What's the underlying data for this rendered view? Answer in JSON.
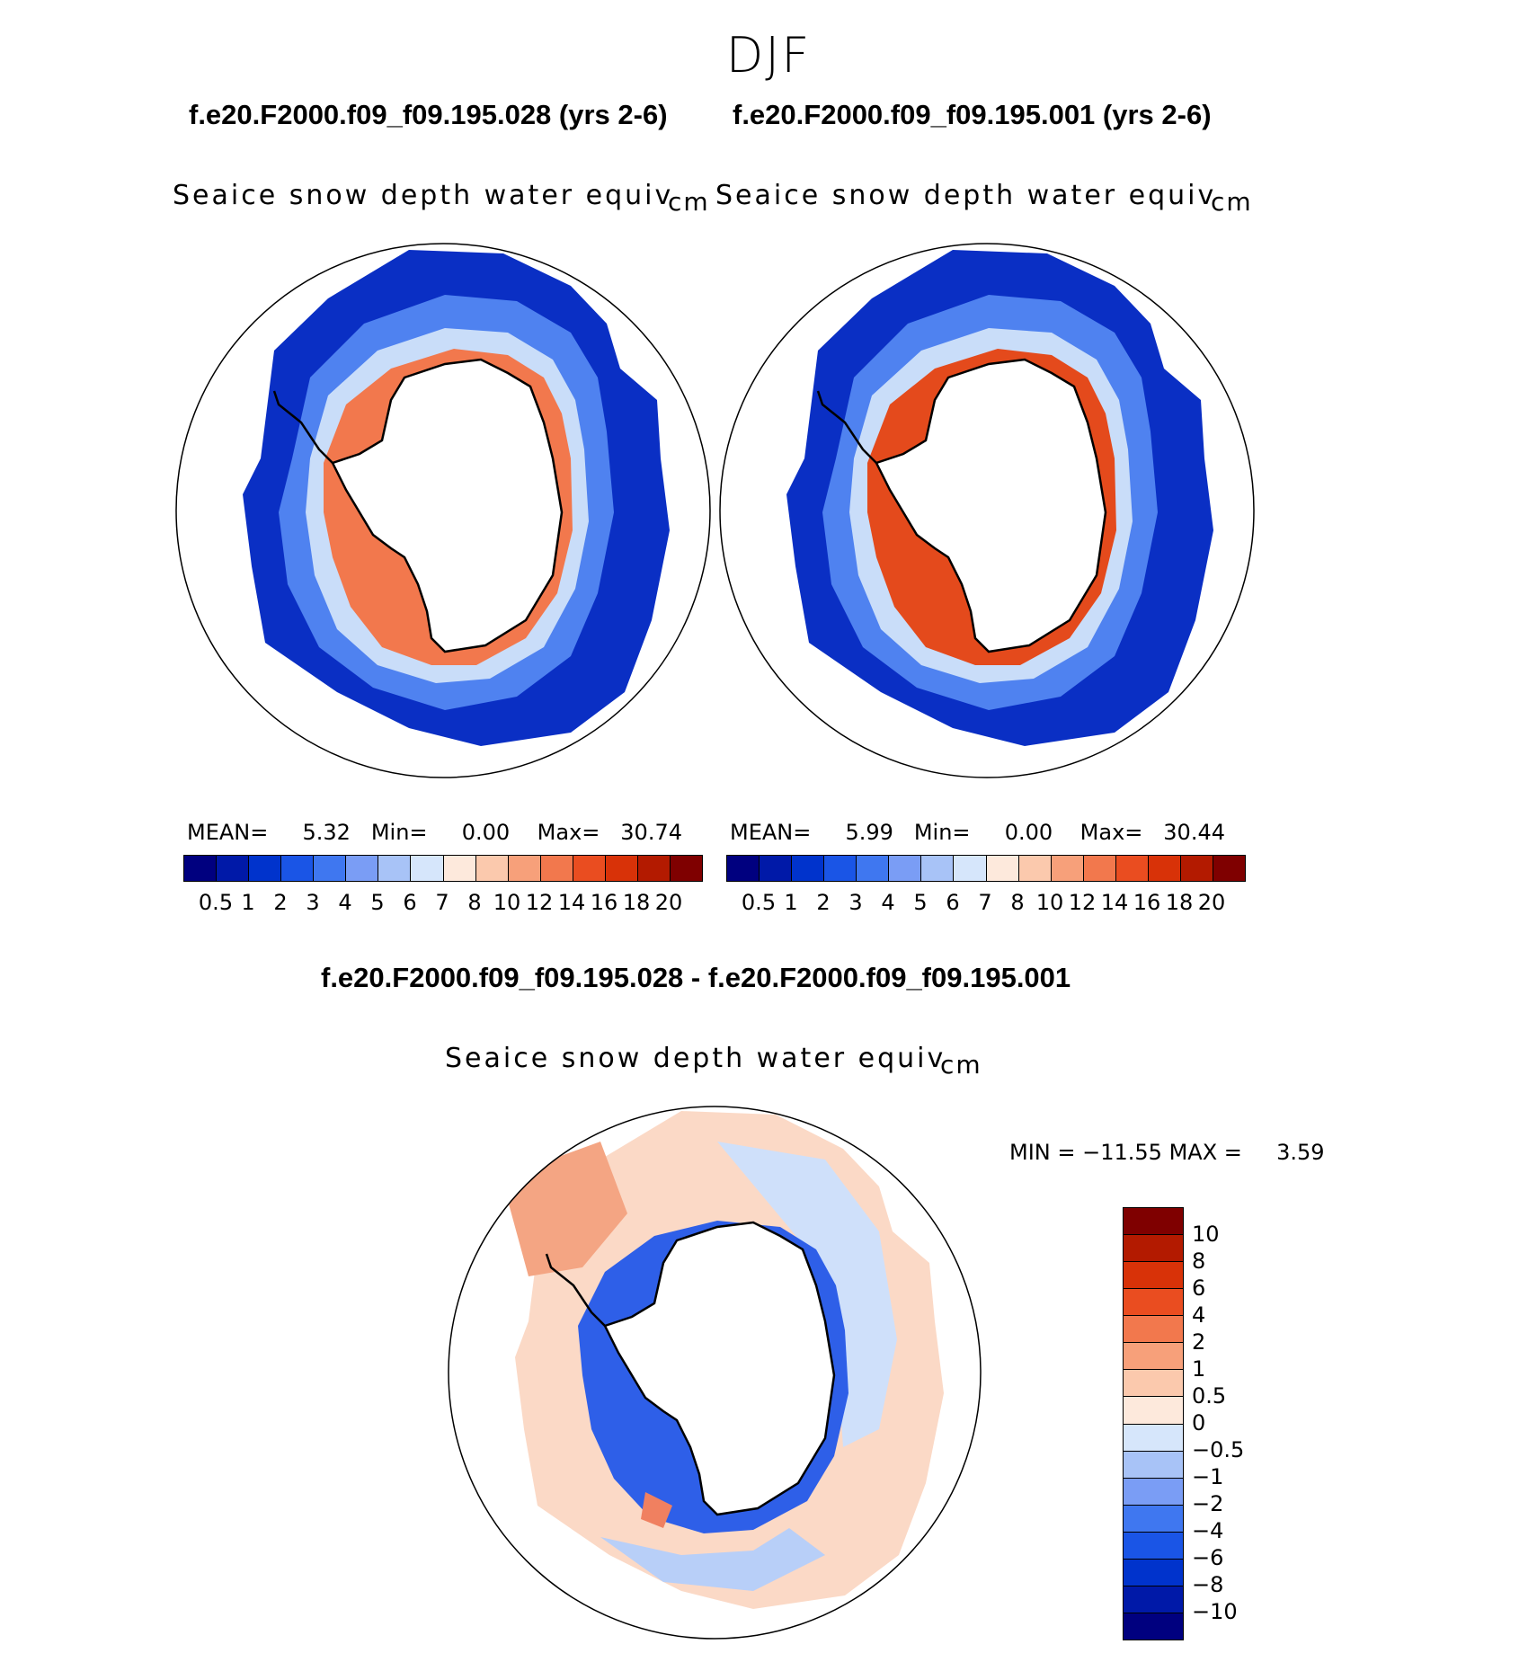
{
  "season": "DJF",
  "case1_title": "f.e20.F2000.f09_f09.195.028 (yrs 2-6)",
  "case2_title": "f.e20.F2000.f09_f09.195.001 (yrs 2-6)",
  "diff_title": "f.e20.F2000.f09_f09.195.028 - f.e20.F2000.f09_f09.195.001",
  "variable": "Seaice snow depth water equiv",
  "units": "cm",
  "panel1_stats": {
    "mean_label": "MEAN=",
    "mean": "5.32",
    "min_label": "Min=",
    "min": "0.00",
    "max_label": "Max=",
    "max": "30.74"
  },
  "panel2_stats": {
    "mean_label": "MEAN=",
    "mean": "5.99",
    "min_label": "Min=",
    "min": "0.00",
    "max_label": "Max=",
    "max": "30.44"
  },
  "diff_stats": {
    "min_label": "MIN =",
    "min": "−11.55",
    "max_label": "MAX =",
    "max": "3.59"
  },
  "abs_colorbar": {
    "colors": [
      "#00007f",
      "#0019a8",
      "#0033cc",
      "#1a55e6",
      "#3f77f0",
      "#7a9df5",
      "#a8c3f7",
      "#d6e6fb",
      "#fde9dc",
      "#fbc9ad",
      "#f7a07a",
      "#f2784d",
      "#ea4d20",
      "#d83208",
      "#b31a00",
      "#7f0000"
    ],
    "labels": [
      "0.5",
      "1",
      "2",
      "3",
      "4",
      "5",
      "6",
      "7",
      "8",
      "10",
      "12",
      "14",
      "16",
      "18",
      "20"
    ]
  },
  "diff_colorbar": {
    "colors": [
      "#00007f",
      "#0019a8",
      "#0033cc",
      "#1a55e6",
      "#3f77f0",
      "#7a9df5",
      "#a8c3f7",
      "#d6e6fb",
      "#fde9dc",
      "#fbc9ad",
      "#f7a07a",
      "#f2784d",
      "#ea4d20",
      "#d83208",
      "#b31a00",
      "#7f0000"
    ],
    "labels": [
      "10",
      "8",
      "6",
      "4",
      "2",
      "1",
      "0.5",
      "0",
      "−0.5",
      "−1",
      "−2",
      "−4",
      "−6",
      "−8",
      "−10"
    ]
  },
  "chart_data": [
    {
      "type": "heatmap",
      "title": "f.e20.F2000.f09_f09.195.028 (yrs 2-6)",
      "subtitle": "Seaice snow depth water equiv",
      "units": "cm",
      "projection": "south polar stereographic",
      "mean": 5.32,
      "min": 0.0,
      "max": 30.74,
      "levels": [
        0.5,
        1,
        2,
        3,
        4,
        5,
        6,
        7,
        8,
        10,
        12,
        14,
        16,
        18,
        20
      ]
    },
    {
      "type": "heatmap",
      "title": "f.e20.F2000.f09_f09.195.001 (yrs 2-6)",
      "subtitle": "Seaice snow depth water equiv",
      "units": "cm",
      "projection": "south polar stereographic",
      "mean": 5.99,
      "min": 0.0,
      "max": 30.44,
      "levels": [
        0.5,
        1,
        2,
        3,
        4,
        5,
        6,
        7,
        8,
        10,
        12,
        14,
        16,
        18,
        20
      ]
    },
    {
      "type": "heatmap",
      "title": "f.e20.F2000.f09_f09.195.028 - f.e20.F2000.f09_f09.195.001",
      "subtitle": "Seaice snow depth water equiv",
      "units": "cm",
      "projection": "south polar stereographic",
      "min": -11.55,
      "max": 3.59,
      "levels": [
        -10,
        -8,
        -6,
        -4,
        -2,
        -1,
        -0.5,
        0,
        0.5,
        1,
        2,
        4,
        6,
        8,
        10
      ]
    }
  ]
}
